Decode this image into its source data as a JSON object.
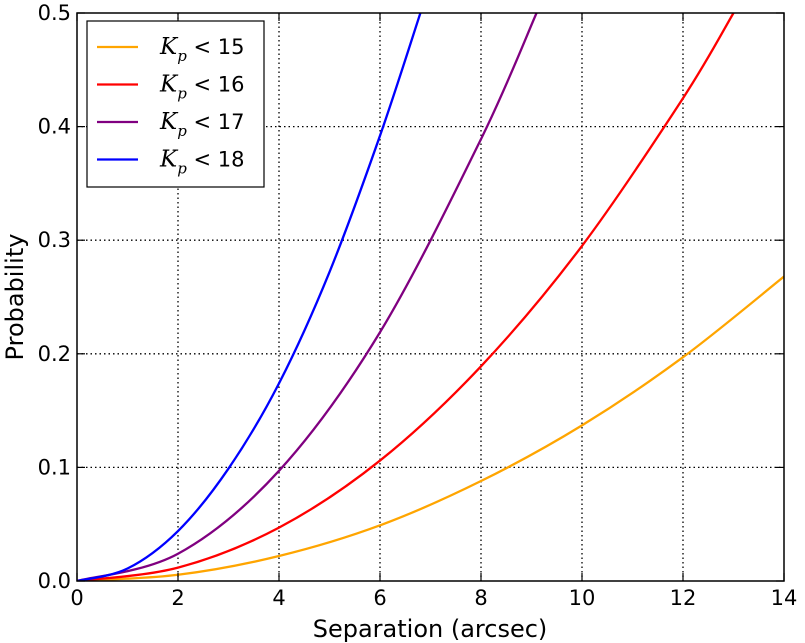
{
  "chart_data": {
    "type": "line",
    "xlabel": "Separation (arcsec)",
    "ylabel": "Probability",
    "xlim": [
      0,
      14
    ],
    "ylim": [
      0,
      0.5
    ],
    "grid": true,
    "legend_position": "top-left",
    "x_ticks": [
      "0",
      "2",
      "4",
      "6",
      "8",
      "10",
      "12",
      "14"
    ],
    "y_ticks": [
      "0.0",
      "0.1",
      "0.2",
      "0.3",
      "0.4",
      "0.5"
    ],
    "series": [
      {
        "name": "K_p < 15",
        "legend_var": "K",
        "legend_sub": "p",
        "legend_rest": " < 15",
        "color": "#ffa500",
        "x": [
          0,
          2,
          4,
          6,
          8,
          10,
          12,
          14
        ],
        "y": [
          0,
          0.0055,
          0.022,
          0.049,
          0.088,
          0.137,
          0.197,
          0.268
        ]
      },
      {
        "name": "K_p < 16",
        "legend_var": "K",
        "legend_sub": "p",
        "legend_rest": " < 16",
        "color": "#ff0000",
        "x": [
          0,
          2,
          4,
          6,
          8,
          10,
          12,
          13
        ],
        "y": [
          0,
          0.0118,
          0.047,
          0.106,
          0.189,
          0.295,
          0.425,
          0.5
        ]
      },
      {
        "name": "K_p < 17",
        "legend_var": "K",
        "legend_sub": "p",
        "legend_rest": " < 17",
        "color": "#800080",
        "x": [
          0,
          2,
          4,
          6,
          8,
          9.1
        ],
        "y": [
          0,
          0.024,
          0.097,
          0.219,
          0.389,
          0.5
        ]
      },
      {
        "name": "K_p < 18",
        "legend_var": "K",
        "legend_sub": "p",
        "legend_rest": " < 18",
        "color": "#0000ff",
        "x": [
          0,
          1,
          2,
          3,
          4,
          5,
          6,
          6.8
        ],
        "y": [
          0,
          0.011,
          0.044,
          0.099,
          0.174,
          0.272,
          0.392,
          0.5
        ]
      }
    ]
  }
}
